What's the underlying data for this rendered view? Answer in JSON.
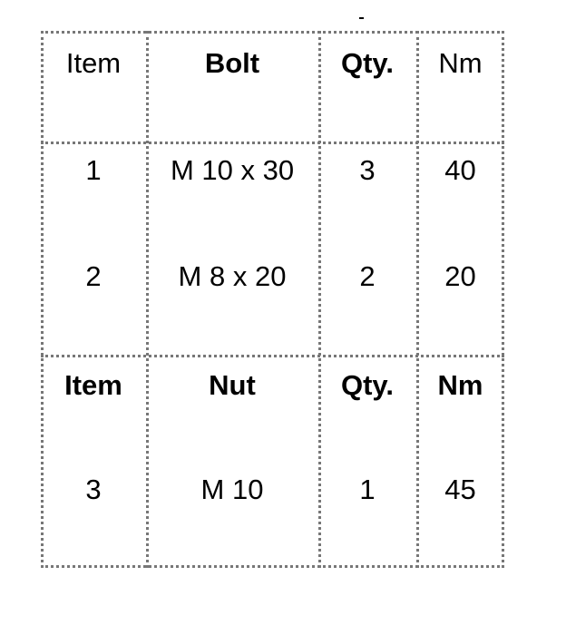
{
  "table": {
    "header1": [
      {
        "text": "Item",
        "bold": false
      },
      {
        "text": "Bolt",
        "bold": true
      },
      {
        "text": "Qty.",
        "bold": true
      },
      {
        "text": "Nm",
        "bold": false
      }
    ],
    "rows1": [
      [
        "1",
        "M 10 x 30",
        "3",
        "40"
      ],
      [
        "2",
        "M 8 x 20",
        "2",
        "20"
      ]
    ],
    "header2": [
      {
        "text": "Item",
        "bold": true
      },
      {
        "text": "Nut",
        "bold": true
      },
      {
        "text": "Qty.",
        "bold": true
      },
      {
        "text": "Nm",
        "bold": true
      }
    ],
    "rows2": [
      [
        "3",
        "M 10",
        "1",
        "45"
      ]
    ]
  }
}
